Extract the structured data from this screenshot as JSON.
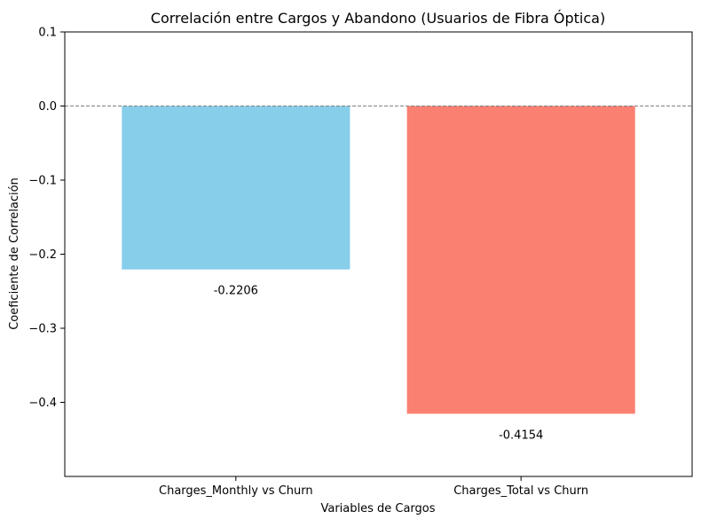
{
  "chart_data": {
    "type": "bar",
    "title": "Correlación entre Cargos y Abandono (Usuarios de Fibra Óptica)",
    "xlabel": "Variables de Cargos",
    "ylabel": "Coeficiente de Correlación",
    "categories": [
      "Charges_Monthly vs Churn",
      "Charges_Total vs Churn"
    ],
    "values": [
      -0.2206,
      -0.4154
    ],
    "value_labels": [
      "-0.2206",
      "-0.4154"
    ],
    "colors": [
      "#87ceeb",
      "#fa8072"
    ],
    "ylim": [
      -0.5,
      0.1
    ],
    "yticks": [
      0.1,
      0.0,
      -0.1,
      -0.2,
      -0.3,
      -0.4
    ],
    "ytick_labels": [
      "0.1",
      "0.0",
      "−0.1",
      "−0.2",
      "−0.3",
      "−0.4"
    ],
    "reference_line": 0.0,
    "grid": false,
    "legend": "none"
  }
}
